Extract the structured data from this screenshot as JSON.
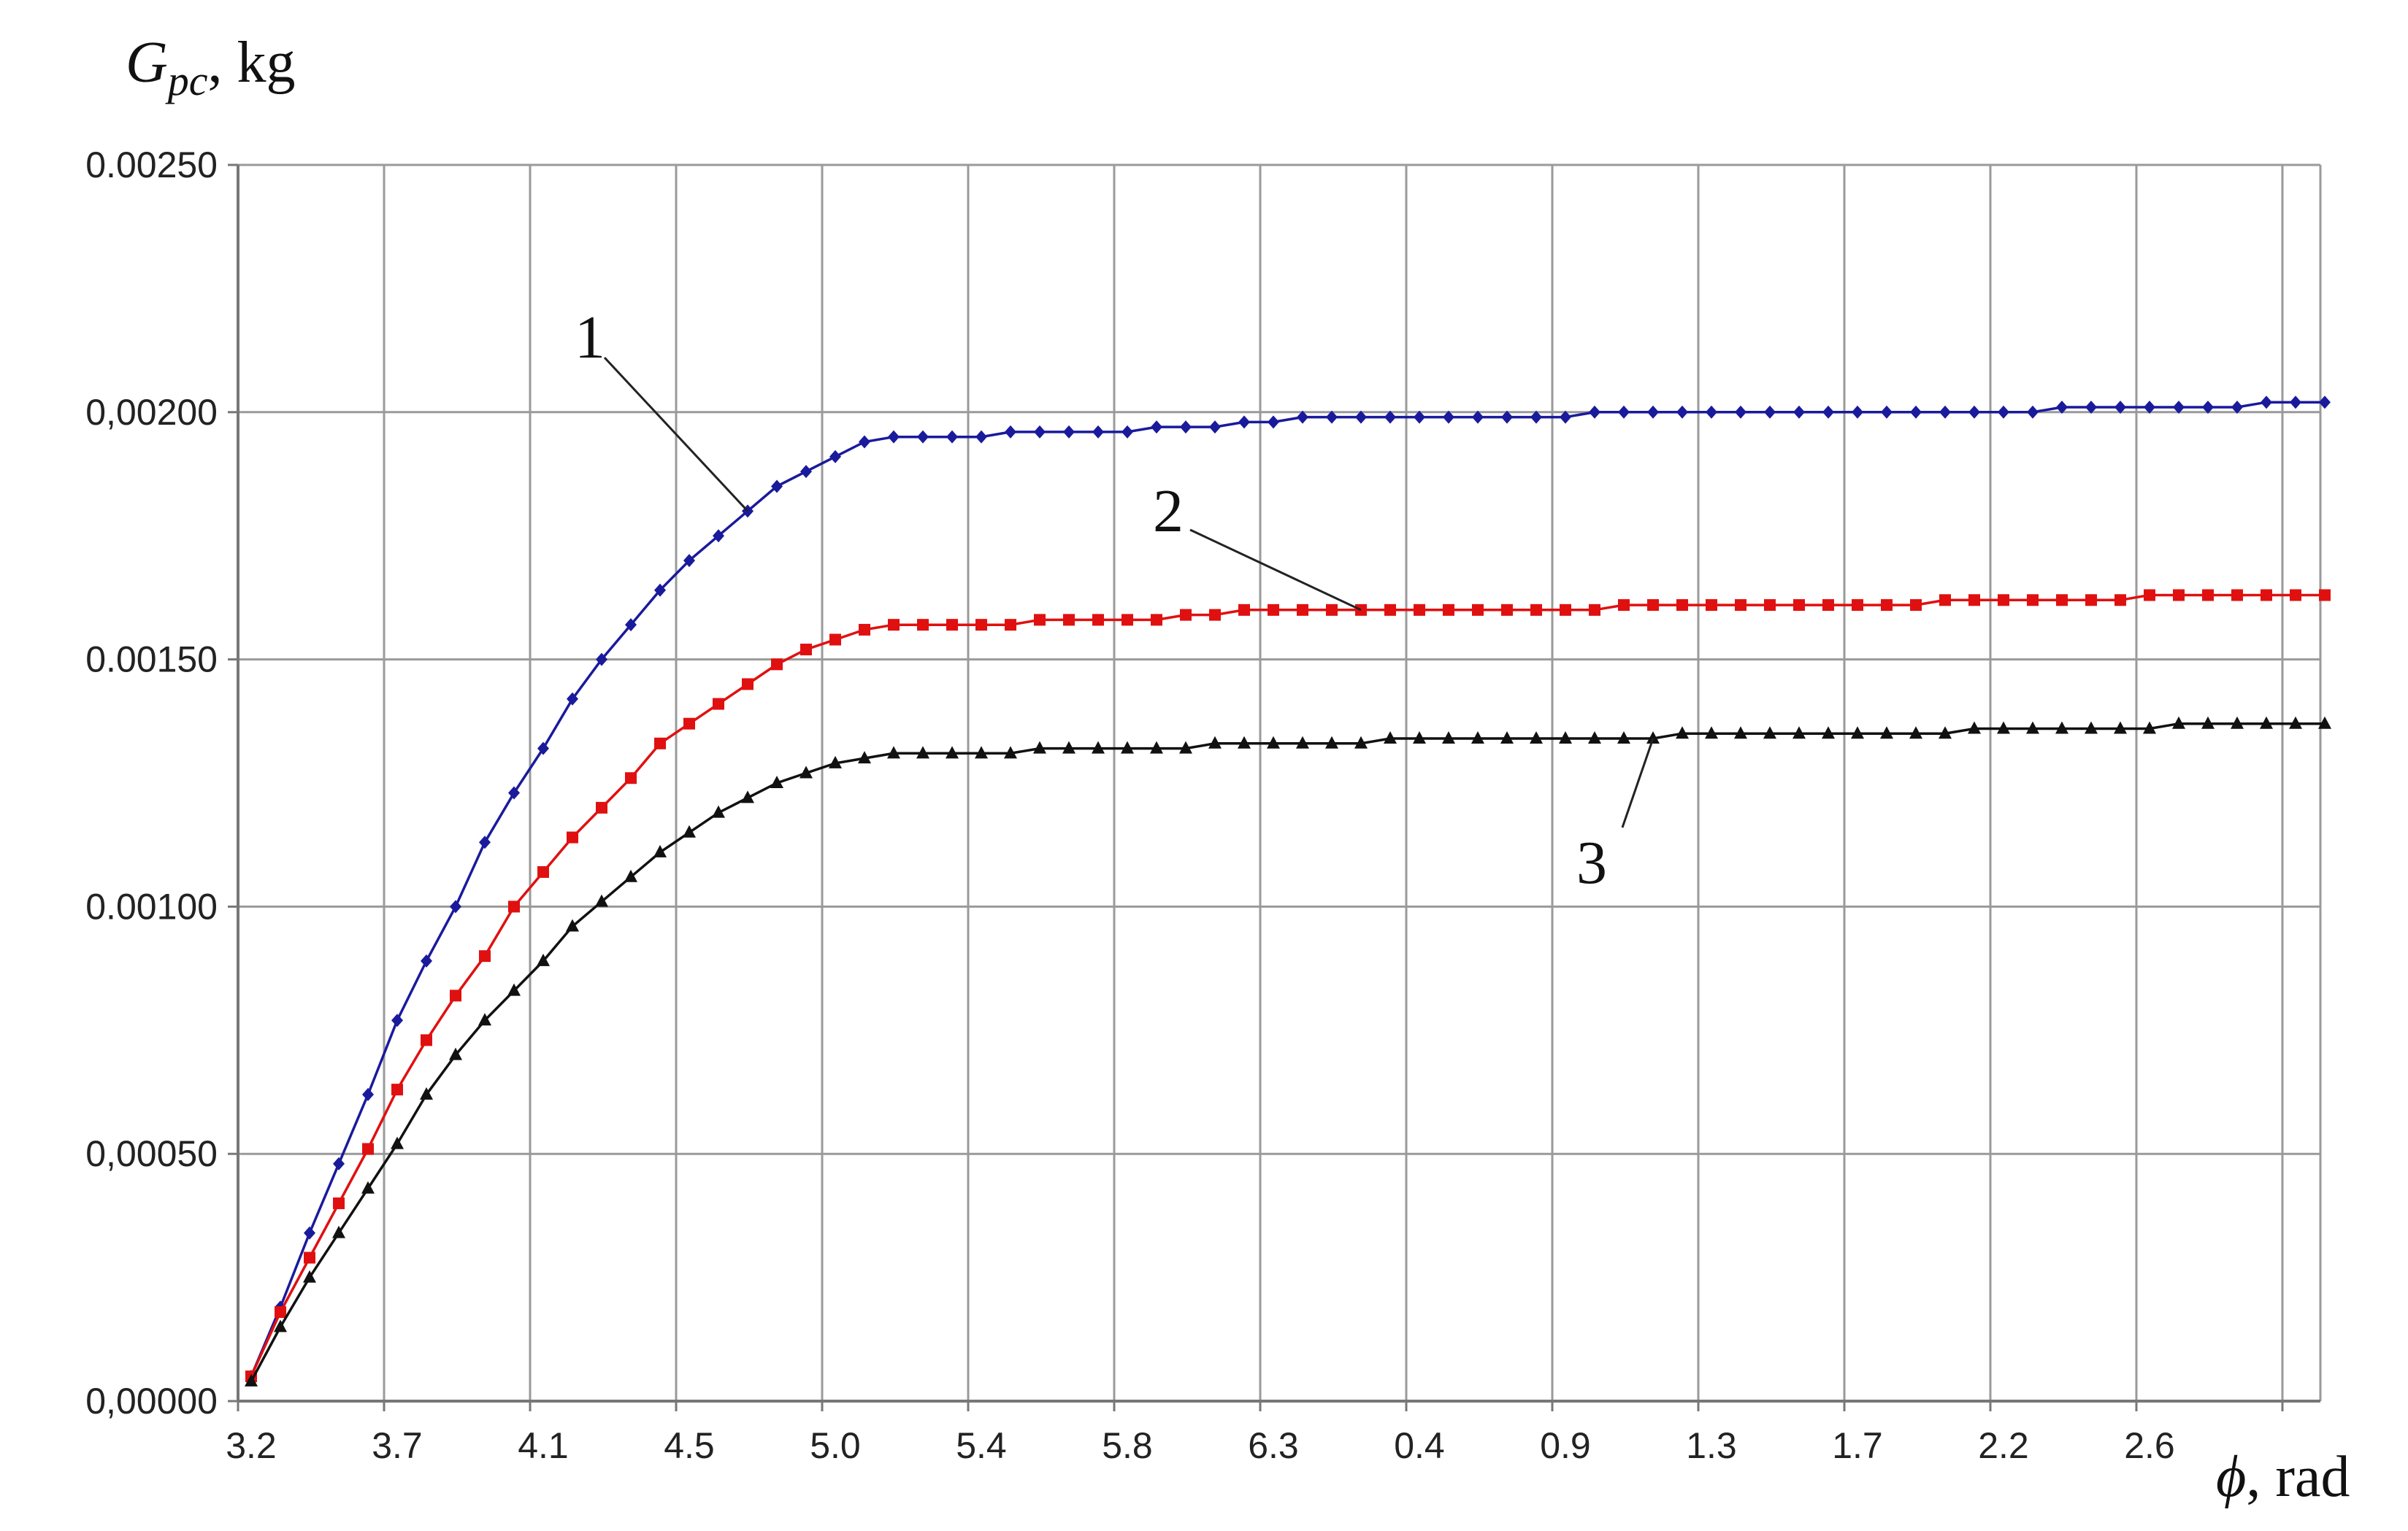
{
  "chart_data": {
    "type": "line",
    "title": "",
    "ylabel_main": "G",
    "ylabel_sub": "pc",
    "ylabel_unit": ", kg",
    "xlabel_main": "ϕ",
    "xlabel_unit": ", rad",
    "ylim": [
      0,
      0.0025
    ],
    "y_ticks": [
      "0,00000",
      "0,00050",
      "0.00100",
      "0.00150",
      "0,00200",
      "0.00250"
    ],
    "y_tick_values": [
      0,
      0.0005,
      0.001,
      0.0015,
      0.002,
      0.0025
    ],
    "x_ticks": [
      "3.2",
      "3.7",
      "4.1",
      "4.5",
      "5.0",
      "5.4",
      "5.8",
      "6.3",
      "0.4",
      "0.9",
      "1.3",
      "1.7",
      "2.2",
      "2.6"
    ],
    "x_tick_index": [
      0,
      5,
      10,
      15,
      20,
      25,
      30,
      35,
      40,
      45,
      50,
      55,
      60,
      65
    ],
    "point_count": 72,
    "grid": true,
    "legend": "none",
    "series": [
      {
        "callout": "1",
        "color": "#1a1a9c",
        "marker": "diamond",
        "values": [
          5e-05,
          0.00019,
          0.00034,
          0.00048,
          0.00062,
          0.00077,
          0.00089,
          0.001,
          0.00113,
          0.00123,
          0.00132,
          0.00142,
          0.0015,
          0.00157,
          0.00164,
          0.0017,
          0.00175,
          0.0018,
          0.00185,
          0.00188,
          0.00191,
          0.00194,
          0.00195,
          0.00195,
          0.00195,
          0.00195,
          0.00196,
          0.00196,
          0.00196,
          0.00196,
          0.00196,
          0.00197,
          0.00197,
          0.00197,
          0.00198,
          0.00198,
          0.00199,
          0.00199,
          0.00199,
          0.00199,
          0.00199,
          0.00199,
          0.00199,
          0.00199,
          0.00199,
          0.00199,
          0.002,
          0.002,
          0.002,
          0.002,
          0.002,
          0.002,
          0.002,
          0.002,
          0.002,
          0.002,
          0.002,
          0.002,
          0.002,
          0.002,
          0.002,
          0.002,
          0.00201,
          0.00201,
          0.00201,
          0.00201,
          0.00201,
          0.00201,
          0.00201,
          0.00202,
          0.00202,
          0.00202
        ]
      },
      {
        "callout": "2",
        "color": "#e01010",
        "marker": "square",
        "values": [
          5e-05,
          0.00018,
          0.00029,
          0.0004,
          0.00051,
          0.00063,
          0.00073,
          0.00082,
          0.0009,
          0.001,
          0.00107,
          0.00114,
          0.0012,
          0.00126,
          0.00133,
          0.00137,
          0.00141,
          0.00145,
          0.00149,
          0.00152,
          0.00154,
          0.00156,
          0.00157,
          0.00157,
          0.00157,
          0.00157,
          0.00157,
          0.00158,
          0.00158,
          0.00158,
          0.00158,
          0.00158,
          0.00159,
          0.00159,
          0.0016,
          0.0016,
          0.0016,
          0.0016,
          0.0016,
          0.0016,
          0.0016,
          0.0016,
          0.0016,
          0.0016,
          0.0016,
          0.0016,
          0.0016,
          0.00161,
          0.00161,
          0.00161,
          0.00161,
          0.00161,
          0.00161,
          0.00161,
          0.00161,
          0.00161,
          0.00161,
          0.00161,
          0.00162,
          0.00162,
          0.00162,
          0.00162,
          0.00162,
          0.00162,
          0.00162,
          0.00163,
          0.00163,
          0.00163,
          0.00163,
          0.00163,
          0.00163,
          0.00163
        ]
      },
      {
        "callout": "3",
        "color": "#111111",
        "marker": "triangle",
        "values": [
          4e-05,
          0.00015,
          0.00025,
          0.00034,
          0.00043,
          0.00052,
          0.00062,
          0.0007,
          0.00077,
          0.00083,
          0.00089,
          0.00096,
          0.00101,
          0.00106,
          0.00111,
          0.00115,
          0.00119,
          0.00122,
          0.00125,
          0.00127,
          0.00129,
          0.0013,
          0.00131,
          0.00131,
          0.00131,
          0.00131,
          0.00131,
          0.00132,
          0.00132,
          0.00132,
          0.00132,
          0.00132,
          0.00132,
          0.00133,
          0.00133,
          0.00133,
          0.00133,
          0.00133,
          0.00133,
          0.00134,
          0.00134,
          0.00134,
          0.00134,
          0.00134,
          0.00134,
          0.00134,
          0.00134,
          0.00134,
          0.00134,
          0.00135,
          0.00135,
          0.00135,
          0.00135,
          0.00135,
          0.00135,
          0.00135,
          0.00135,
          0.00135,
          0.00135,
          0.00136,
          0.00136,
          0.00136,
          0.00136,
          0.00136,
          0.00136,
          0.00136,
          0.00137,
          0.00137,
          0.00137,
          0.00137,
          0.00137,
          0.00137
        ]
      }
    ]
  }
}
